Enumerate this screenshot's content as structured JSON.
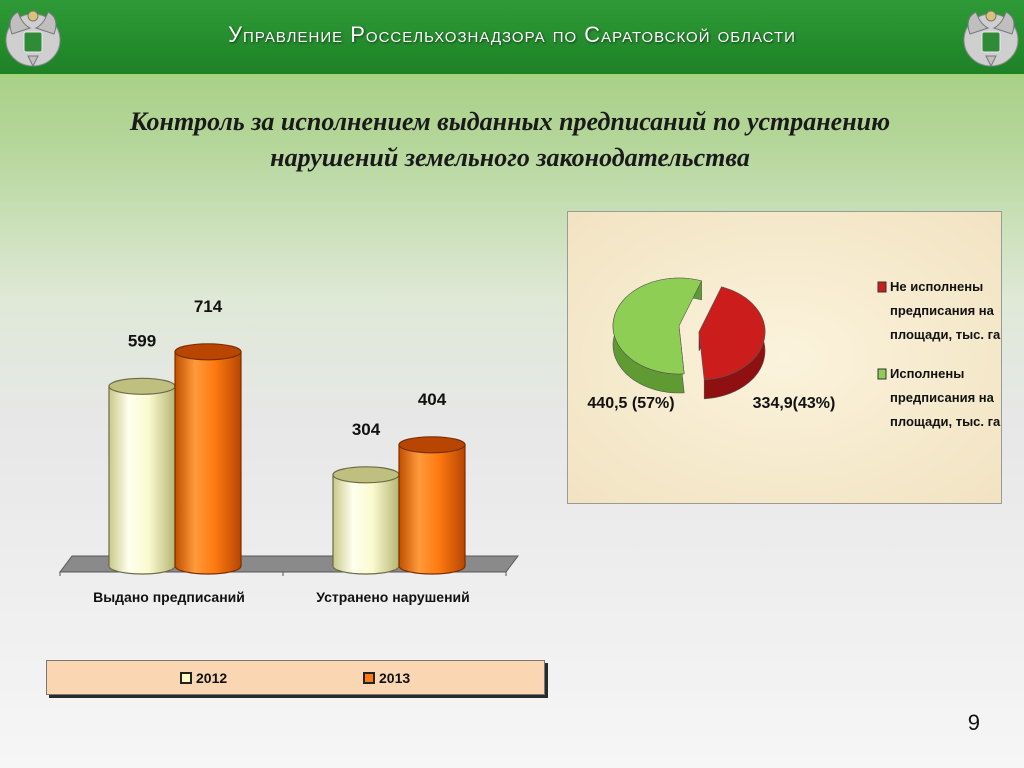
{
  "header": {
    "title": "Управление Россельхознадзора по Саратовской области"
  },
  "slide_title": {
    "line1": "Контроль за исполнением выданных предписаний по устранению",
    "line2": "нарушений земельного законодательства"
  },
  "colors": {
    "header_green": "#23892c",
    "series_2012": "#f7f7c0",
    "series_2013": "#ff7a10",
    "pie_not_executed": "#cc1d1d",
    "pie_executed": "#8fce55"
  },
  "icons": [
    "emblem-icon"
  ],
  "chart_data": [
    {
      "type": "bar",
      "categories": [
        "Выдано предписаний",
        "Устранено  нарушений"
      ],
      "series": [
        {
          "name": "2012",
          "values": [
            599,
            304
          ]
        },
        {
          "name": "2013",
          "values": [
            714,
            404
          ]
        }
      ],
      "data_labels": [
        [
          "599",
          "304"
        ],
        [
          "714",
          "404"
        ]
      ],
      "legend": {
        "position": "bottom",
        "entries": [
          "2012",
          "2013"
        ]
      },
      "style": "3d-cylinder",
      "grid": false
    },
    {
      "type": "pie",
      "style": "3d-exploded",
      "slices": [
        {
          "label": "Не исполнены предписания на площади, тыс. га",
          "value": 334.9,
          "percent": 43,
          "data_label": "334,9(43%)"
        },
        {
          "label": "Исполнены предписания на площади, тыс. га",
          "value": 440.5,
          "percent": 57,
          "data_label": "440,5 (57%)"
        }
      ],
      "legend": {
        "position": "right",
        "entries": [
          {
            "lines": [
              "Не исполнены",
              "предписания на",
              "площади, тыс. га"
            ]
          },
          {
            "lines": [
              "Исполнены",
              "предписания на",
              "площади, тыс. га"
            ]
          }
        ]
      }
    }
  ],
  "page_number": "9"
}
